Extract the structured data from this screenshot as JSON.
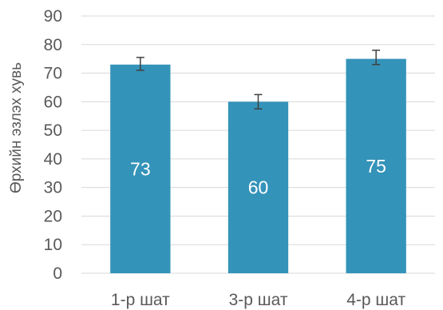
{
  "chart_data": {
    "type": "bar",
    "title": "",
    "xlabel": "",
    "ylabel": "Өрхийн эзлэх хувь",
    "categories": [
      "1-р шат",
      "3-р шат",
      "4-р шат"
    ],
    "values": [
      73,
      60,
      75
    ],
    "data_labels": [
      "73",
      "60",
      "75"
    ],
    "error_bars": [
      {
        "low": 71,
        "high": 75.5
      },
      {
        "low": 57.5,
        "high": 62.5
      },
      {
        "low": 73,
        "high": 78
      }
    ],
    "ylim": [
      0,
      90
    ],
    "yticks": [
      0,
      10,
      20,
      30,
      40,
      50,
      60,
      70,
      80,
      90
    ],
    "grid": true,
    "legend": "none",
    "colors": {
      "bar": "#3493B9",
      "grid": "#D9D9D9",
      "error_bar": "#404040",
      "text": "#595959",
      "data_label": "#ffffff"
    }
  }
}
